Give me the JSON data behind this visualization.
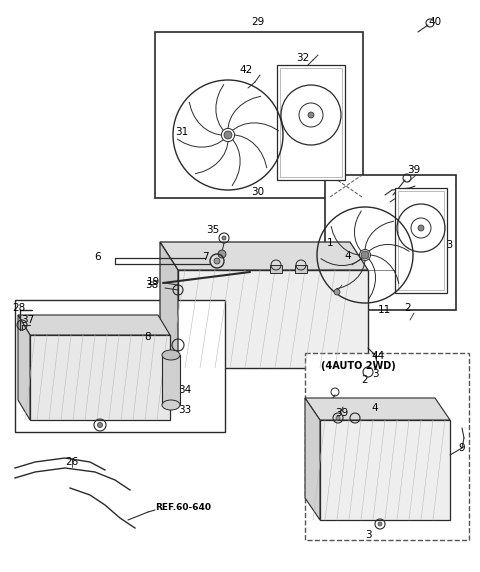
{
  "bg_color": "#ffffff",
  "line_color": "#2a2a2a",
  "dashed_color": "#555555",
  "figsize": [
    4.8,
    5.72
  ],
  "dpi": 100
}
